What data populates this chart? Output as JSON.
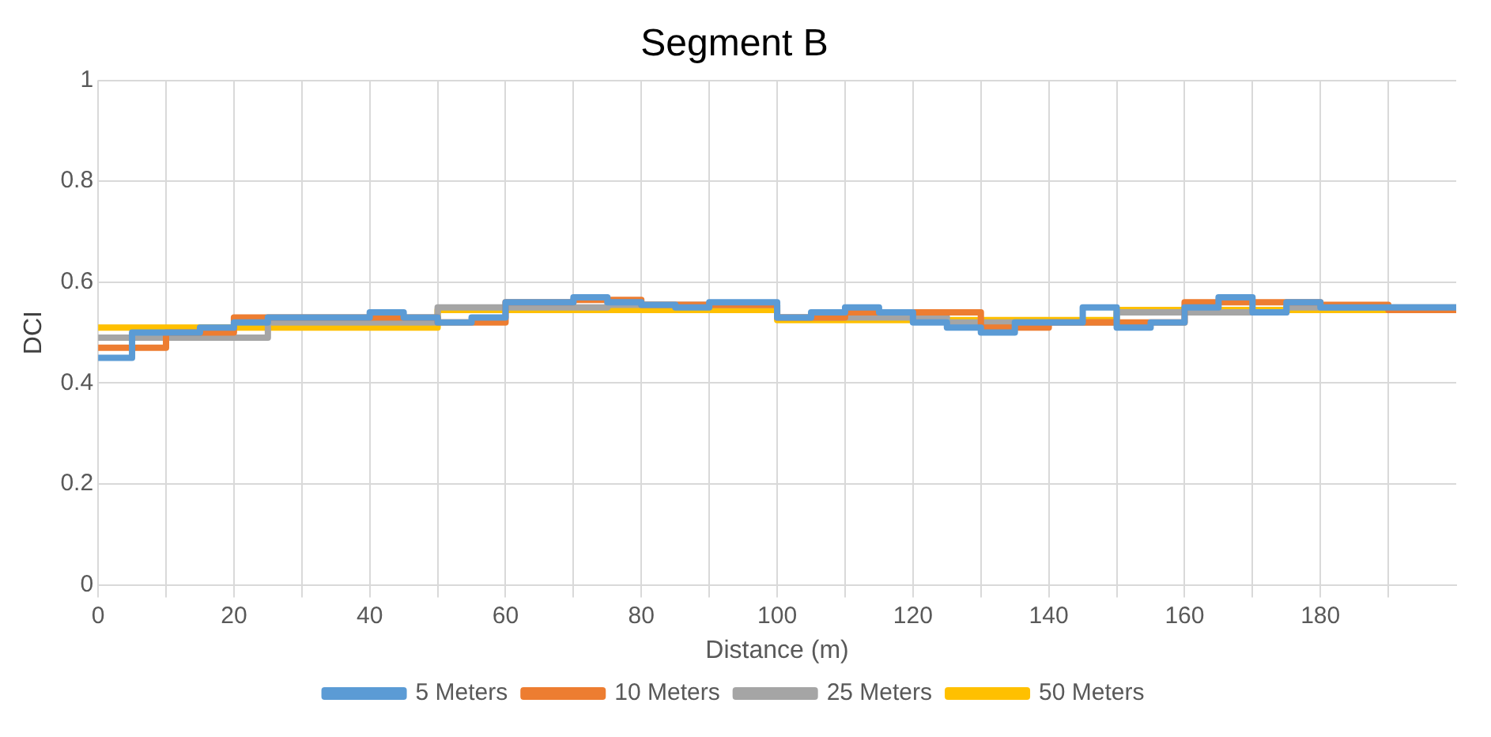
{
  "chart_data": {
    "type": "step",
    "title": "Segment B",
    "xlabel": "Distance (m)",
    "ylabel": "DCI",
    "xlim": [
      0,
      200
    ],
    "xticks": [
      0,
      {
        "value": 10,
        "label": null
      },
      20,
      {
        "value": 30,
        "label": null
      },
      40,
      {
        "value": 50,
        "label": null
      },
      60,
      {
        "value": 70,
        "label": null
      },
      80,
      {
        "value": 90,
        "label": null
      },
      100,
      {
        "value": 110,
        "label": null
      },
      120,
      {
        "value": 130,
        "label": null
      },
      140,
      {
        "value": 150,
        "label": null
      },
      160,
      {
        "value": 170,
        "label": null
      },
      180,
      {
        "value": 190,
        "label": null
      }
    ],
    "ylim": [
      0,
      1
    ],
    "yticks": [
      0,
      0.2,
      0.4,
      0.6,
      0.8,
      1
    ],
    "grid": true,
    "legend": "bottom",
    "marker": "none",
    "line_style": "solid",
    "series": [
      {
        "name": "5 Meters",
        "color": "#5b9bd5",
        "x": [
          0,
          5,
          10,
          15,
          20,
          25,
          30,
          35,
          40,
          45,
          50,
          55,
          60,
          65,
          70,
          75,
          80,
          85,
          90,
          95,
          100,
          105,
          110,
          115,
          120,
          125,
          130,
          135,
          140,
          145,
          150,
          155,
          160,
          165,
          170,
          175,
          180,
          185,
          190,
          195,
          200
        ],
        "values": [
          0.45,
          0.5,
          0.5,
          0.51,
          0.52,
          0.53,
          0.53,
          0.53,
          0.54,
          0.53,
          0.52,
          0.53,
          0.56,
          0.56,
          0.57,
          0.56,
          0.555,
          0.55,
          0.56,
          0.56,
          0.53,
          0.54,
          0.55,
          0.54,
          0.52,
          0.51,
          0.5,
          0.52,
          0.52,
          0.55,
          0.51,
          0.52,
          0.55,
          0.57,
          0.54,
          0.56,
          0.55,
          0.55,
          0.55,
          0.55,
          0.55
        ]
      },
      {
        "name": "10 Meters",
        "color": "#ed7d31",
        "x": [
          0,
          10,
          20,
          30,
          40,
          50,
          60,
          70,
          80,
          90,
          100,
          110,
          120,
          130,
          140,
          150,
          160,
          170,
          180,
          190,
          200
        ],
        "values": [
          0.47,
          0.5,
          0.53,
          0.53,
          0.53,
          0.52,
          0.56,
          0.565,
          0.555,
          0.555,
          0.53,
          0.54,
          0.54,
          0.51,
          0.52,
          0.52,
          0.56,
          0.56,
          0.555,
          0.545,
          0.545
        ]
      },
      {
        "name": "25 Meters",
        "color": "#a5a5a5",
        "x": [
          0,
          25,
          50,
          75,
          100,
          125,
          150,
          175,
          200
        ],
        "values": [
          0.49,
          0.52,
          0.55,
          0.555,
          0.53,
          0.52,
          0.54,
          0.55,
          0.55
        ]
      },
      {
        "name": "50 Meters",
        "color": "#ffc000",
        "x": [
          0,
          50,
          100,
          150,
          200
        ],
        "values": [
          0.51,
          0.545,
          0.525,
          0.545,
          0.545
        ]
      }
    ]
  }
}
